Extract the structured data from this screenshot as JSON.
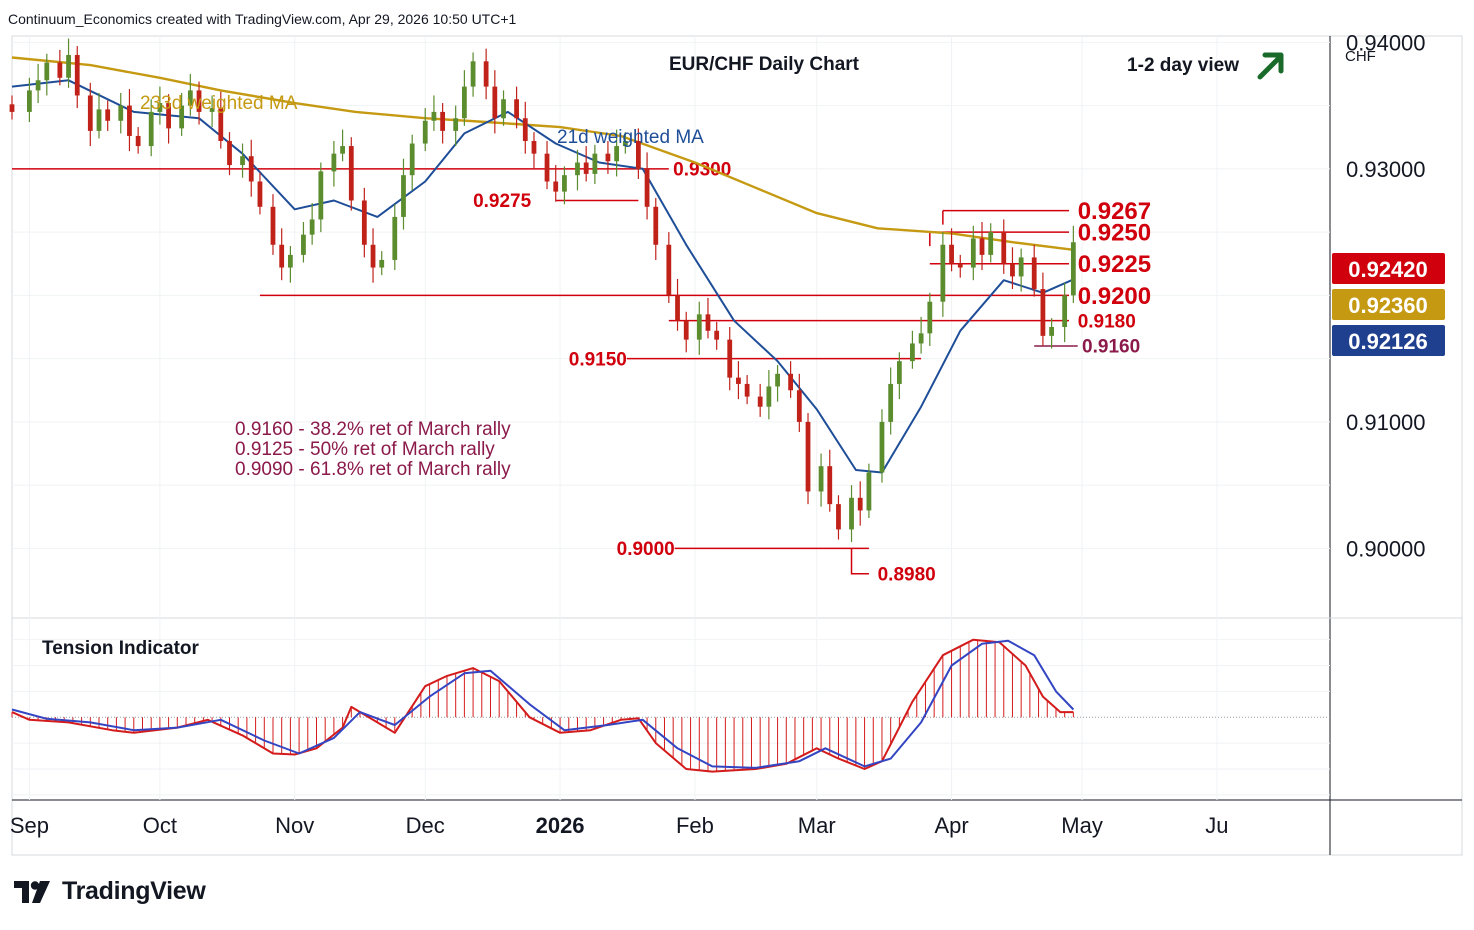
{
  "header": {
    "credit": "Continuum_Economics created with TradingView.com, Apr 29, 2026 10:50 UTC+1"
  },
  "branding": {
    "name": "TradingView",
    "logo_icon": "tradingview-logo-icon"
  },
  "colors": {
    "up_candle": "#5b8c2e",
    "down_candle": "#c0221a",
    "level_line": "#d0000d",
    "ma233": "#c59a12",
    "ma21": "#1f4e98",
    "annotation_text": "#8b1a4b",
    "arrow": "#1a6b2a",
    "badge_price": "#d0000d",
    "badge_ma233": "#c59a12",
    "badge_ma21": "#1f3f8f",
    "tension_fill": "#d41b1b",
    "tension_slow": "#3345c2"
  },
  "chart_data": {
    "type": "candlestick",
    "title": "EUR/CHF Daily Chart",
    "view_label": "1-2 day view",
    "view_icon": "arrow-up-right-icon",
    "y_unit": "CHF",
    "ylim": [
      0.8945,
      0.9405
    ],
    "y_ticks": [
      "0.94000",
      "0.93000",
      "0.91000",
      "0.90000"
    ],
    "x_ticks": [
      "Sep",
      "Oct",
      "Nov",
      "Dec",
      "2026",
      "Feb",
      "Mar",
      "Apr",
      "May",
      "Ju"
    ],
    "x_range": [
      "2025-08-28",
      "2026-06-27"
    ],
    "x_tick_dates": [
      "2025-09-01",
      "2025-10-01",
      "2025-11-01",
      "2025-12-01",
      "2026-01-01",
      "2026-02-01",
      "2026-03-01",
      "2026-04-01",
      "2026-05-01",
      "2026-06-01"
    ],
    "grid": true,
    "price_badges": [
      {
        "label": "0.92420",
        "value": 0.9242,
        "role": "last price"
      },
      {
        "label": "0.92360",
        "value": 0.9236,
        "role": "233d weighted MA"
      },
      {
        "label": "0.92126",
        "value": 0.92126,
        "role": "21d weighted MA"
      }
    ],
    "closes": [
      [
        "2025-08-28",
        0.9345
      ],
      [
        "2025-09-01",
        0.9362
      ],
      [
        "2025-09-03",
        0.937
      ],
      [
        "2025-09-05",
        0.9384
      ],
      [
        "2025-09-08",
        0.9372
      ],
      [
        "2025-09-10",
        0.939
      ],
      [
        "2025-09-12",
        0.9358
      ],
      [
        "2025-09-15",
        0.933
      ],
      [
        "2025-09-17",
        0.9347
      ],
      [
        "2025-09-19",
        0.9338
      ],
      [
        "2025-09-22",
        0.935
      ],
      [
        "2025-09-24",
        0.9326
      ],
      [
        "2025-09-26",
        0.9318
      ],
      [
        "2025-09-29",
        0.9345
      ],
      [
        "2025-10-01",
        0.9352
      ],
      [
        "2025-10-03",
        0.9332
      ],
      [
        "2025-10-06",
        0.935
      ],
      [
        "2025-10-08",
        0.9362
      ],
      [
        "2025-10-10",
        0.9345
      ],
      [
        "2025-10-13",
        0.9348
      ],
      [
        "2025-10-15",
        0.9322
      ],
      [
        "2025-10-17",
        0.9303
      ],
      [
        "2025-10-20",
        0.931
      ],
      [
        "2025-10-22",
        0.929
      ],
      [
        "2025-10-24",
        0.927
      ],
      [
        "2025-10-27",
        0.924
      ],
      [
        "2025-10-29",
        0.9222
      ],
      [
        "2025-10-31",
        0.9232
      ],
      [
        "2025-11-03",
        0.9248
      ],
      [
        "2025-11-05",
        0.926
      ],
      [
        "2025-11-07",
        0.9298
      ],
      [
        "2025-11-10",
        0.9312
      ],
      [
        "2025-11-12",
        0.9318
      ],
      [
        "2025-11-14",
        0.9275
      ],
      [
        "2025-11-17",
        0.924
      ],
      [
        "2025-11-19",
        0.9222
      ],
      [
        "2025-11-21",
        0.9228
      ],
      [
        "2025-11-24",
        0.9262
      ],
      [
        "2025-11-26",
        0.9295
      ],
      [
        "2025-11-28",
        0.932
      ],
      [
        "2025-12-01",
        0.9338
      ],
      [
        "2025-12-03",
        0.9345
      ],
      [
        "2025-12-05",
        0.933
      ],
      [
        "2025-12-08",
        0.934
      ],
      [
        "2025-12-10",
        0.9365
      ],
      [
        "2025-12-12",
        0.9385
      ],
      [
        "2025-12-15",
        0.9365
      ],
      [
        "2025-12-17",
        0.934
      ],
      [
        "2025-12-19",
        0.9355
      ],
      [
        "2025-12-22",
        0.934
      ],
      [
        "2025-12-24",
        0.9322
      ],
      [
        "2025-12-26",
        0.9312
      ],
      [
        "2025-12-29",
        0.929
      ],
      [
        "2025-12-31",
        0.9282
      ],
      [
        "2026-01-02",
        0.9295
      ],
      [
        "2026-01-05",
        0.9305
      ],
      [
        "2026-01-07",
        0.9296
      ],
      [
        "2026-01-09",
        0.9312
      ],
      [
        "2026-01-12",
        0.9306
      ],
      [
        "2026-01-14",
        0.9318
      ],
      [
        "2026-01-16",
        0.9322
      ],
      [
        "2026-01-19",
        0.93
      ],
      [
        "2026-01-21",
        0.927
      ],
      [
        "2026-01-23",
        0.924
      ],
      [
        "2026-01-26",
        0.92
      ],
      [
        "2026-01-28",
        0.918
      ],
      [
        "2026-01-30",
        0.9165
      ],
      [
        "2026-02-02",
        0.9185
      ],
      [
        "2026-02-04",
        0.9172
      ],
      [
        "2026-02-06",
        0.9165
      ],
      [
        "2026-02-09",
        0.9135
      ],
      [
        "2026-02-11",
        0.913
      ],
      [
        "2026-02-13",
        0.912
      ],
      [
        "2026-02-16",
        0.9112
      ],
      [
        "2026-02-18",
        0.9128
      ],
      [
        "2026-02-20",
        0.9138
      ],
      [
        "2026-02-23",
        0.9125
      ],
      [
        "2026-02-25",
        0.91
      ],
      [
        "2026-02-27",
        0.9045
      ],
      [
        "2026-03-02",
        0.9065
      ],
      [
        "2026-03-04",
        0.9035
      ],
      [
        "2026-03-06",
        0.9015
      ],
      [
        "2026-03-09",
        0.904
      ],
      [
        "2026-03-11",
        0.903
      ],
      [
        "2026-03-13",
        0.906
      ],
      [
        "2026-03-16",
        0.91
      ],
      [
        "2026-03-18",
        0.913
      ],
      [
        "2026-03-20",
        0.9148
      ],
      [
        "2026-03-23",
        0.9162
      ],
      [
        "2026-03-25",
        0.917
      ],
      [
        "2026-03-27",
        0.9195
      ],
      [
        "2026-03-30",
        0.924
      ],
      [
        "2026-04-01",
        0.9225
      ],
      [
        "2026-04-03",
        0.9222
      ],
      [
        "2026-04-06",
        0.9245
      ],
      [
        "2026-04-08",
        0.9232
      ],
      [
        "2026-04-10",
        0.925
      ],
      [
        "2026-04-13",
        0.9225
      ],
      [
        "2026-04-15",
        0.9215
      ],
      [
        "2026-04-17",
        0.923
      ],
      [
        "2026-04-20",
        0.9205
      ],
      [
        "2026-04-22",
        0.9168
      ],
      [
        "2026-04-24",
        0.9175
      ],
      [
        "2026-04-27",
        0.92
      ],
      [
        "2026-04-29",
        0.9242
      ]
    ],
    "ma233_label": "233d weighted MA",
    "ma233": [
      [
        "2025-08-28",
        0.9388
      ],
      [
        "2025-09-15",
        0.9382
      ],
      [
        "2025-10-01",
        0.9372
      ],
      [
        "2025-10-15",
        0.9362
      ],
      [
        "2025-11-01",
        0.9352
      ],
      [
        "2025-11-15",
        0.9345
      ],
      [
        "2025-12-01",
        0.934
      ],
      [
        "2025-12-15",
        0.9337
      ],
      [
        "2026-01-01",
        0.9333
      ],
      [
        "2026-01-15",
        0.9326
      ],
      [
        "2026-02-01",
        0.9305
      ],
      [
        "2026-02-15",
        0.9285
      ],
      [
        "2026-03-01",
        0.9265
      ],
      [
        "2026-03-15",
        0.9253
      ],
      [
        "2026-04-01",
        0.9249
      ],
      [
        "2026-04-15",
        0.9242
      ],
      [
        "2026-04-29",
        0.9236
      ]
    ],
    "ma21_label": "21d weighted MA",
    "ma21": [
      [
        "2025-08-28",
        0.9365
      ],
      [
        "2025-09-10",
        0.937
      ],
      [
        "2025-09-25",
        0.9345
      ],
      [
        "2025-10-10",
        0.934
      ],
      [
        "2025-10-20",
        0.9312
      ],
      [
        "2025-11-01",
        0.9268
      ],
      [
        "2025-11-10",
        0.9275
      ],
      [
        "2025-11-20",
        0.9262
      ],
      [
        "2025-12-01",
        0.929
      ],
      [
        "2025-12-10",
        0.9328
      ],
      [
        "2025-12-20",
        0.9345
      ],
      [
        "2025-12-31",
        0.932
      ],
      [
        "2026-01-10",
        0.9305
      ],
      [
        "2026-01-20",
        0.93
      ],
      [
        "2026-01-30",
        0.924
      ],
      [
        "2026-02-10",
        0.918
      ],
      [
        "2026-02-20",
        0.9148
      ],
      [
        "2026-03-01",
        0.911
      ],
      [
        "2026-03-10",
        0.9062
      ],
      [
        "2026-03-16",
        0.906
      ],
      [
        "2026-03-25",
        0.9112
      ],
      [
        "2026-04-03",
        0.9172
      ],
      [
        "2026-04-13",
        0.9212
      ],
      [
        "2026-04-22",
        0.9202
      ],
      [
        "2026-04-29",
        0.92126
      ]
    ],
    "levels": [
      {
        "label": "0.9300",
        "value": 0.93,
        "from": "2025-08-28",
        "to": "2026-01-26",
        "label_at": "2026-01-27",
        "size": "md"
      },
      {
        "label": "0.9275",
        "value": 0.9275,
        "from": "2025-12-31",
        "to": "2026-01-19",
        "label_at": "2025-12-12",
        "size": "md"
      },
      {
        "label": "0.9267",
        "value": 0.9267,
        "from": "2026-03-30",
        "to": "2026-04-28",
        "label_at": "2026-04-30",
        "size": "lg"
      },
      {
        "label": "0.9250",
        "value": 0.925,
        "from": "2026-03-27",
        "to": "2026-04-28",
        "label_at": "2026-04-30",
        "size": "lg"
      },
      {
        "label": "0.9225",
        "value": 0.9225,
        "from": "2026-03-27",
        "to": "2026-04-28",
        "label_at": "2026-04-30",
        "size": "lg"
      },
      {
        "label": "0.9200",
        "value": 0.92,
        "from": "2025-10-24",
        "to": "2026-04-28",
        "label_at": "2026-04-30",
        "size": "lg"
      },
      {
        "label": "0.9180",
        "value": 0.918,
        "from": "2026-01-26",
        "to": "2026-04-28",
        "label_at": "2026-04-30",
        "size": "md"
      },
      {
        "label": "0.9160",
        "value": 0.916,
        "from": "2026-04-20",
        "to": "2026-04-29",
        "label_at": "2026-05-01",
        "size": "md",
        "connector_to": "2026-04-30"
      },
      {
        "label": "0.9150",
        "value": 0.915,
        "from": "2026-01-30",
        "to": "2026-03-25",
        "label_at": "2026-01-03",
        "size": "md"
      },
      {
        "label": "0.9000",
        "value": 0.9,
        "from": "2026-02-04",
        "to": "2026-03-13",
        "label_at": "2026-01-14",
        "size": "md"
      },
      {
        "label": "0.8980",
        "value": 0.898,
        "from": "2026-03-09",
        "to": "2026-03-13",
        "label_at": "2026-03-15",
        "size": "md",
        "connector_from": 0.9
      }
    ],
    "annotations": [
      "0.9160 - 38.2% ret of March rally",
      "0.9125 - 50% ret of March rally",
      "0.9090 - 61.8% ret of March rally"
    ],
    "tension": {
      "title": "Tension Indicator",
      "ylim": [
        -1.6,
        1.9
      ],
      "values": [
        [
          "2025-08-28",
          0.1
        ],
        [
          "2025-09-01",
          -0.05
        ],
        [
          "2025-09-10",
          -0.1
        ],
        [
          "2025-09-20",
          -0.25
        ],
        [
          "2025-09-25",
          -0.3
        ],
        [
          "2025-10-05",
          -0.2
        ],
        [
          "2025-10-12",
          -0.05
        ],
        [
          "2025-10-20",
          -0.35
        ],
        [
          "2025-10-27",
          -0.7
        ],
        [
          "2025-11-01",
          -0.72
        ],
        [
          "2025-11-06",
          -0.6
        ],
        [
          "2025-11-12",
          -0.2
        ],
        [
          "2025-11-14",
          0.2
        ],
        [
          "2025-11-20",
          -0.1
        ],
        [
          "2025-11-24",
          -0.3
        ],
        [
          "2025-12-01",
          0.6
        ],
        [
          "2025-12-06",
          0.8
        ],
        [
          "2025-12-12",
          0.95
        ],
        [
          "2025-12-18",
          0.7
        ],
        [
          "2025-12-25",
          0.0
        ],
        [
          "2026-01-01",
          -0.3
        ],
        [
          "2026-01-08",
          -0.25
        ],
        [
          "2026-01-15",
          -0.05
        ],
        [
          "2026-01-19",
          -0.02
        ],
        [
          "2026-01-23",
          -0.5
        ],
        [
          "2026-01-30",
          -1.0
        ],
        [
          "2026-02-05",
          -1.05
        ],
        [
          "2026-02-15",
          -1.0
        ],
        [
          "2026-02-22",
          -0.9
        ],
        [
          "2026-03-01",
          -0.6
        ],
        [
          "2026-03-06",
          -0.8
        ],
        [
          "2026-03-12",
          -1.0
        ],
        [
          "2026-03-16",
          -0.85
        ],
        [
          "2026-03-23",
          0.3
        ],
        [
          "2026-03-30",
          1.2
        ],
        [
          "2026-04-06",
          1.5
        ],
        [
          "2026-04-12",
          1.45
        ],
        [
          "2026-04-18",
          1.0
        ],
        [
          "2026-04-22",
          0.4
        ],
        [
          "2026-04-26",
          0.1
        ],
        [
          "2026-04-29",
          0.1
        ]
      ],
      "slow": [
        [
          "2025-08-28",
          0.15
        ],
        [
          "2025-09-05",
          -0.03
        ],
        [
          "2025-09-15",
          -0.1
        ],
        [
          "2025-09-25",
          -0.25
        ],
        [
          "2025-10-05",
          -0.2
        ],
        [
          "2025-10-15",
          -0.05
        ],
        [
          "2025-10-25",
          -0.45
        ],
        [
          "2025-11-02",
          -0.7
        ],
        [
          "2025-11-10",
          -0.4
        ],
        [
          "2025-11-16",
          0.1
        ],
        [
          "2025-11-24",
          -0.15
        ],
        [
          "2025-12-02",
          0.4
        ],
        [
          "2025-12-10",
          0.85
        ],
        [
          "2025-12-16",
          0.9
        ],
        [
          "2025-12-25",
          0.25
        ],
        [
          "2026-01-02",
          -0.25
        ],
        [
          "2026-01-12",
          -0.15
        ],
        [
          "2026-01-20",
          -0.05
        ],
        [
          "2026-01-28",
          -0.6
        ],
        [
          "2026-02-05",
          -0.95
        ],
        [
          "2026-02-15",
          -0.98
        ],
        [
          "2026-02-25",
          -0.85
        ],
        [
          "2026-03-03",
          -0.6
        ],
        [
          "2026-03-12",
          -0.95
        ],
        [
          "2026-03-18",
          -0.8
        ],
        [
          "2026-03-25",
          -0.1
        ],
        [
          "2026-04-01",
          1.0
        ],
        [
          "2026-04-08",
          1.42
        ],
        [
          "2026-04-14",
          1.48
        ],
        [
          "2026-04-20",
          1.2
        ],
        [
          "2026-04-25",
          0.5
        ],
        [
          "2026-04-29",
          0.15
        ]
      ]
    }
  }
}
